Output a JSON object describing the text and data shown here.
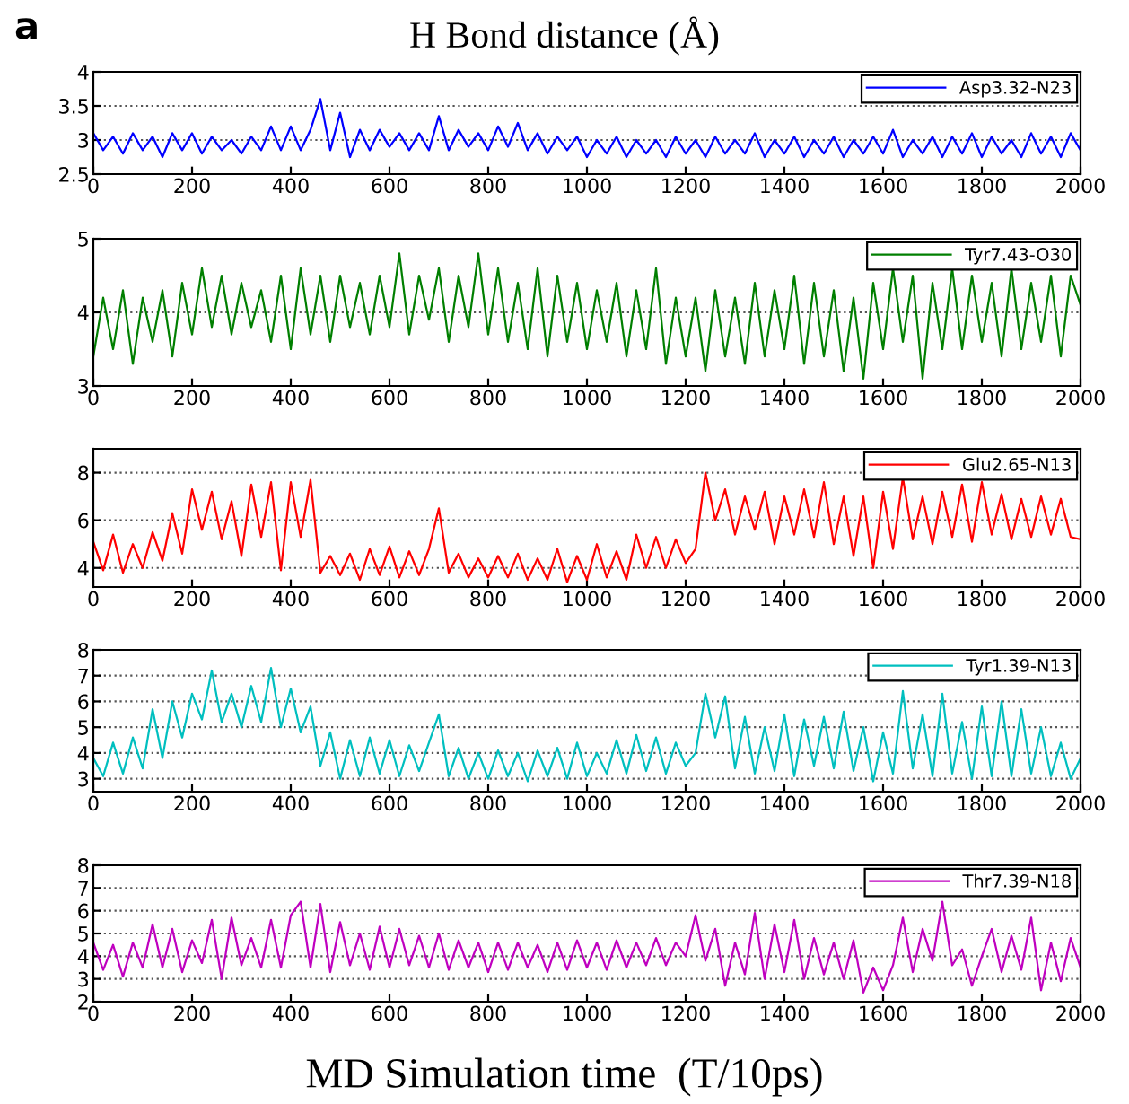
{
  "chart_data": [
    {
      "type": "line",
      "title": "H Bond distance (Å)",
      "annotations": [
        "a"
      ],
      "xlim": [
        0,
        2000
      ],
      "xticks": [
        0,
        200,
        400,
        600,
        800,
        1000,
        1200,
        1400,
        1600,
        1800,
        2000
      ],
      "ylim": [
        2.5,
        4
      ],
      "yticks": [
        2.5,
        3,
        3.5,
        4
      ],
      "grid": "y",
      "legend": "top right",
      "x": [
        0,
        20,
        40,
        60,
        80,
        100,
        120,
        140,
        160,
        180,
        200,
        220,
        240,
        260,
        280,
        300,
        320,
        340,
        360,
        380,
        400,
        420,
        440,
        460,
        480,
        500,
        520,
        540,
        560,
        580,
        600,
        620,
        640,
        660,
        680,
        700,
        720,
        740,
        760,
        780,
        800,
        820,
        840,
        860,
        880,
        900,
        920,
        940,
        960,
        980,
        1000,
        1020,
        1040,
        1060,
        1080,
        1100,
        1120,
        1140,
        1160,
        1180,
        1200,
        1220,
        1240,
        1260,
        1280,
        1300,
        1320,
        1340,
        1360,
        1380,
        1400,
        1420,
        1440,
        1460,
        1480,
        1500,
        1520,
        1540,
        1560,
        1580,
        1600,
        1620,
        1640,
        1660,
        1680,
        1700,
        1720,
        1740,
        1760,
        1780,
        1800,
        1820,
        1840,
        1860,
        1880,
        1900,
        1920,
        1940,
        1960,
        1980,
        2000
      ],
      "series": [
        {
          "name": "Asp3.32-N23",
          "color": "#0000ff",
          "values": [
            3.1,
            2.85,
            3.05,
            2.8,
            3.1,
            2.85,
            3.05,
            2.75,
            3.1,
            2.85,
            3.1,
            2.8,
            3.05,
            2.85,
            3.0,
            2.8,
            3.05,
            2.85,
            3.2,
            2.85,
            3.2,
            2.85,
            3.15,
            3.6,
            2.85,
            3.4,
            2.75,
            3.15,
            2.85,
            3.15,
            2.9,
            3.1,
            2.85,
            3.1,
            2.85,
            3.35,
            2.85,
            3.15,
            2.9,
            3.1,
            2.85,
            3.2,
            2.9,
            3.25,
            2.85,
            3.1,
            2.8,
            3.05,
            2.85,
            3.05,
            2.75,
            3.0,
            2.8,
            3.05,
            2.75,
            3.0,
            2.8,
            3.0,
            2.75,
            3.05,
            2.8,
            3.0,
            2.75,
            3.05,
            2.8,
            3.0,
            2.8,
            3.1,
            2.75,
            3.0,
            2.8,
            3.05,
            2.75,
            3.0,
            2.8,
            3.05,
            2.75,
            3.0,
            2.8,
            3.05,
            2.8,
            3.15,
            2.75,
            3.0,
            2.8,
            3.05,
            2.75,
            3.05,
            2.8,
            3.1,
            2.75,
            3.05,
            2.8,
            3.0,
            2.75,
            3.1,
            2.8,
            3.05,
            2.75,
            3.1,
            2.85
          ]
        }
      ]
    },
    {
      "type": "line",
      "xlim": [
        0,
        2000
      ],
      "xticks": [
        0,
        200,
        400,
        600,
        800,
        1000,
        1200,
        1400,
        1600,
        1800,
        2000
      ],
      "ylim": [
        3,
        5
      ],
      "yticks": [
        3,
        4,
        5
      ],
      "grid": "y",
      "legend": "top right",
      "x": [
        0,
        20,
        40,
        60,
        80,
        100,
        120,
        140,
        160,
        180,
        200,
        220,
        240,
        260,
        280,
        300,
        320,
        340,
        360,
        380,
        400,
        420,
        440,
        460,
        480,
        500,
        520,
        540,
        560,
        580,
        600,
        620,
        640,
        660,
        680,
        700,
        720,
        740,
        760,
        780,
        800,
        820,
        840,
        860,
        880,
        900,
        920,
        940,
        960,
        980,
        1000,
        1020,
        1040,
        1060,
        1080,
        1100,
        1120,
        1140,
        1160,
        1180,
        1200,
        1220,
        1240,
        1260,
        1280,
        1300,
        1320,
        1340,
        1360,
        1380,
        1400,
        1420,
        1440,
        1460,
        1480,
        1500,
        1520,
        1540,
        1560,
        1580,
        1600,
        1620,
        1640,
        1660,
        1680,
        1700,
        1720,
        1740,
        1760,
        1780,
        1800,
        1820,
        1840,
        1860,
        1880,
        1900,
        1920,
        1940,
        1960,
        1980,
        2000
      ],
      "series": [
        {
          "name": "Tyr7.43-O30",
          "color": "#007f00",
          "values": [
            3.4,
            4.2,
            3.5,
            4.3,
            3.3,
            4.2,
            3.6,
            4.3,
            3.4,
            4.4,
            3.7,
            4.6,
            3.8,
            4.5,
            3.7,
            4.4,
            3.8,
            4.3,
            3.6,
            4.5,
            3.5,
            4.6,
            3.7,
            4.5,
            3.6,
            4.5,
            3.8,
            4.4,
            3.7,
            4.5,
            3.8,
            4.8,
            3.7,
            4.5,
            3.9,
            4.6,
            3.6,
            4.5,
            3.8,
            4.8,
            3.7,
            4.6,
            3.6,
            4.4,
            3.5,
            4.6,
            3.4,
            4.5,
            3.6,
            4.4,
            3.5,
            4.3,
            3.6,
            4.4,
            3.4,
            4.3,
            3.5,
            4.6,
            3.3,
            4.2,
            3.4,
            4.2,
            3.2,
            4.3,
            3.4,
            4.2,
            3.3,
            4.4,
            3.4,
            4.3,
            3.5,
            4.5,
            3.3,
            4.4,
            3.4,
            4.3,
            3.2,
            4.2,
            3.1,
            4.4,
            3.5,
            4.6,
            3.6,
            4.5,
            3.1,
            4.4,
            3.5,
            4.6,
            3.5,
            4.5,
            3.6,
            4.4,
            3.4,
            4.6,
            3.5,
            4.4,
            3.6,
            4.5,
            3.4,
            4.5,
            4.1
          ]
        }
      ]
    },
    {
      "type": "line",
      "xlim": [
        0,
        2000
      ],
      "xticks": [
        0,
        200,
        400,
        600,
        800,
        1000,
        1200,
        1400,
        1600,
        1800,
        2000
      ],
      "ylim": [
        3.2,
        9
      ],
      "yticks": [
        4,
        6,
        8
      ],
      "grid": "y",
      "legend": "top right",
      "x": [
        0,
        20,
        40,
        60,
        80,
        100,
        120,
        140,
        160,
        180,
        200,
        220,
        240,
        260,
        280,
        300,
        320,
        340,
        360,
        380,
        400,
        420,
        440,
        460,
        480,
        500,
        520,
        540,
        560,
        580,
        600,
        620,
        640,
        660,
        680,
        700,
        720,
        740,
        760,
        780,
        800,
        820,
        840,
        860,
        880,
        900,
        920,
        940,
        960,
        980,
        1000,
        1020,
        1040,
        1060,
        1080,
        1100,
        1120,
        1140,
        1160,
        1180,
        1200,
        1220,
        1240,
        1260,
        1280,
        1300,
        1320,
        1340,
        1360,
        1380,
        1400,
        1420,
        1440,
        1460,
        1480,
        1500,
        1520,
        1540,
        1560,
        1580,
        1600,
        1620,
        1640,
        1660,
        1680,
        1700,
        1720,
        1740,
        1760,
        1780,
        1800,
        1820,
        1840,
        1860,
        1880,
        1900,
        1920,
        1940,
        1960,
        1980,
        2000
      ],
      "series": [
        {
          "name": "Glu2.65-N13",
          "color": "#ff0000",
          "values": [
            5.1,
            3.9,
            5.4,
            3.8,
            5.0,
            4.0,
            5.5,
            4.3,
            6.3,
            4.6,
            7.3,
            5.6,
            7.2,
            5.2,
            6.8,
            4.5,
            7.5,
            5.3,
            7.6,
            3.9,
            7.6,
            5.3,
            7.7,
            3.8,
            4.5,
            3.7,
            4.6,
            3.5,
            4.8,
            3.7,
            4.9,
            3.6,
            4.7,
            3.7,
            4.8,
            6.5,
            3.8,
            4.6,
            3.6,
            4.4,
            3.6,
            4.5,
            3.6,
            4.6,
            3.5,
            4.4,
            3.5,
            4.8,
            3.4,
            4.5,
            3.5,
            5.0,
            3.6,
            4.7,
            3.5,
            5.4,
            4.0,
            5.3,
            4.0,
            5.2,
            4.2,
            4.8,
            8.0,
            6.0,
            7.3,
            5.4,
            7.0,
            5.6,
            7.2,
            5.0,
            7.0,
            5.4,
            7.3,
            5.3,
            7.6,
            5.0,
            7.0,
            4.5,
            7.0,
            4.0,
            7.2,
            4.8,
            7.8,
            5.2,
            7.0,
            5.0,
            7.2,
            5.3,
            7.5,
            5.1,
            7.6,
            5.4,
            7.1,
            5.2,
            6.9,
            5.3,
            7.0,
            5.4,
            6.9,
            5.3,
            5.2
          ]
        }
      ]
    },
    {
      "type": "line",
      "xlim": [
        0,
        2000
      ],
      "xticks": [
        0,
        200,
        400,
        600,
        800,
        1000,
        1200,
        1400,
        1600,
        1800,
        2000
      ],
      "ylim": [
        2.5,
        8
      ],
      "yticks": [
        3,
        4,
        5,
        6,
        7,
        8
      ],
      "grid": "y",
      "legend": "top right",
      "x": [
        0,
        20,
        40,
        60,
        80,
        100,
        120,
        140,
        160,
        180,
        200,
        220,
        240,
        260,
        280,
        300,
        320,
        340,
        360,
        380,
        400,
        420,
        440,
        460,
        480,
        500,
        520,
        540,
        560,
        580,
        600,
        620,
        640,
        660,
        680,
        700,
        720,
        740,
        760,
        780,
        800,
        820,
        840,
        860,
        880,
        900,
        920,
        940,
        960,
        980,
        1000,
        1020,
        1040,
        1060,
        1080,
        1100,
        1120,
        1140,
        1160,
        1180,
        1200,
        1220,
        1240,
        1260,
        1280,
        1300,
        1320,
        1340,
        1360,
        1380,
        1400,
        1420,
        1440,
        1460,
        1480,
        1500,
        1520,
        1540,
        1560,
        1580,
        1600,
        1620,
        1640,
        1660,
        1680,
        1700,
        1720,
        1740,
        1760,
        1780,
        1800,
        1820,
        1840,
        1860,
        1880,
        1900,
        1920,
        1940,
        1960,
        1980,
        2000
      ],
      "series": [
        {
          "name": "Tyr1.39-N13",
          "color": "#00bfbf",
          "values": [
            3.8,
            3.1,
            4.4,
            3.2,
            4.6,
            3.4,
            5.7,
            3.8,
            6.0,
            4.6,
            6.3,
            5.3,
            7.2,
            5.2,
            6.3,
            5.0,
            6.6,
            5.2,
            7.3,
            5.0,
            6.5,
            4.8,
            5.8,
            3.5,
            4.8,
            3.0,
            4.5,
            3.1,
            4.6,
            3.2,
            4.5,
            3.1,
            4.3,
            3.3,
            4.4,
            5.5,
            3.1,
            4.2,
            3.0,
            4.0,
            3.0,
            4.1,
            3.1,
            4.0,
            2.9,
            4.1,
            3.1,
            4.2,
            3.0,
            4.4,
            3.1,
            4.0,
            3.2,
            4.5,
            3.2,
            4.7,
            3.3,
            4.6,
            3.2,
            4.4,
            3.5,
            4.0,
            6.3,
            4.6,
            6.2,
            3.4,
            5.4,
            3.2,
            5.0,
            3.3,
            5.5,
            3.1,
            5.3,
            3.5,
            5.4,
            3.4,
            5.6,
            3.3,
            5.0,
            2.9,
            4.8,
            3.2,
            6.4,
            3.4,
            5.5,
            3.1,
            6.3,
            3.2,
            5.2,
            3.0,
            5.8,
            3.1,
            6.0,
            3.1,
            5.7,
            3.2,
            5.0,
            3.1,
            4.4,
            3.0,
            3.8
          ]
        }
      ]
    },
    {
      "type": "line",
      "xlabel": "MD Simulation time  (T/10ps)",
      "xlim": [
        0,
        2000
      ],
      "xticks": [
        0,
        200,
        400,
        600,
        800,
        1000,
        1200,
        1400,
        1600,
        1800,
        2000
      ],
      "ylim": [
        2,
        8
      ],
      "yticks": [
        2,
        3,
        4,
        5,
        6,
        7,
        8
      ],
      "grid": "y",
      "legend": "top right",
      "x": [
        0,
        20,
        40,
        60,
        80,
        100,
        120,
        140,
        160,
        180,
        200,
        220,
        240,
        260,
        280,
        300,
        320,
        340,
        360,
        380,
        400,
        420,
        440,
        460,
        480,
        500,
        520,
        540,
        560,
        580,
        600,
        620,
        640,
        660,
        680,
        700,
        720,
        740,
        760,
        780,
        800,
        820,
        840,
        860,
        880,
        900,
        920,
        940,
        960,
        980,
        1000,
        1020,
        1040,
        1060,
        1080,
        1100,
        1120,
        1140,
        1160,
        1180,
        1200,
        1220,
        1240,
        1260,
        1280,
        1300,
        1320,
        1340,
        1360,
        1380,
        1400,
        1420,
        1440,
        1460,
        1480,
        1500,
        1520,
        1540,
        1560,
        1580,
        1600,
        1620,
        1640,
        1660,
        1680,
        1700,
        1720,
        1740,
        1760,
        1780,
        1800,
        1820,
        1840,
        1860,
        1880,
        1900,
        1920,
        1940,
        1960,
        1980,
        2000
      ],
      "series": [
        {
          "name": "Thr7.39-N18",
          "color": "#bf00bf",
          "values": [
            4.6,
            3.4,
            4.5,
            3.1,
            4.6,
            3.5,
            5.4,
            3.5,
            5.2,
            3.3,
            4.7,
            3.7,
            5.6,
            3.0,
            5.7,
            3.6,
            4.8,
            3.5,
            5.6,
            3.5,
            5.8,
            6.4,
            3.5,
            6.3,
            3.3,
            5.5,
            3.6,
            5.0,
            3.4,
            5.3,
            3.5,
            5.2,
            3.6,
            4.9,
            3.5,
            5.0,
            3.4,
            4.7,
            3.5,
            4.6,
            3.3,
            4.6,
            3.4,
            4.6,
            3.5,
            4.5,
            3.3,
            4.6,
            3.4,
            4.7,
            3.5,
            4.6,
            3.4,
            4.7,
            3.5,
            4.6,
            3.6,
            4.8,
            3.6,
            4.6,
            4.0,
            5.8,
            3.8,
            5.2,
            2.7,
            4.6,
            3.2,
            5.9,
            3.0,
            5.4,
            3.3,
            5.6,
            3.0,
            4.8,
            3.2,
            4.6,
            3.0,
            4.7,
            2.4,
            3.5,
            2.5,
            3.6,
            5.7,
            3.3,
            5.2,
            3.8,
            6.4,
            3.6,
            4.3,
            2.7,
            4.0,
            5.2,
            3.3,
            4.9,
            3.4,
            5.7,
            2.5,
            4.6,
            2.9,
            4.8,
            3.5
          ]
        }
      ]
    }
  ]
}
